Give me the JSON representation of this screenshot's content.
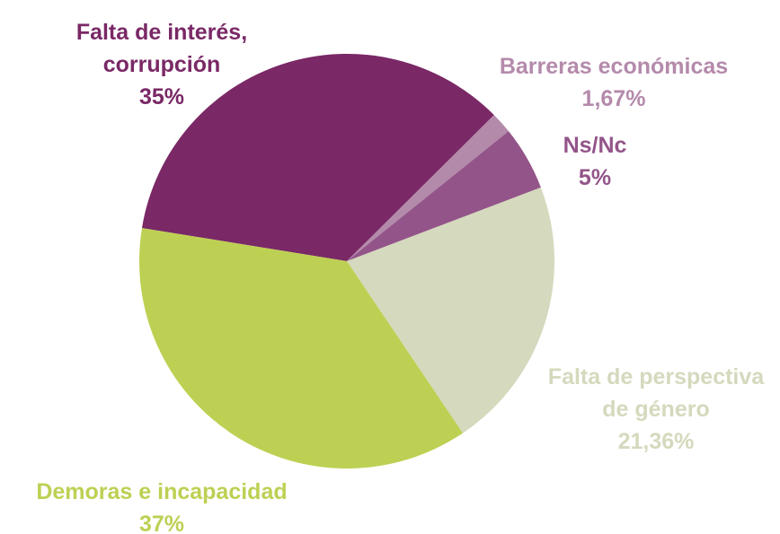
{
  "chart_data": {
    "type": "pie",
    "categories": [
      "Falta de interés, corrupción",
      "Barreras económicas",
      "Ns/Nc",
      "Falta de perspectiva de género",
      "Demoras e incapacidad"
    ],
    "values": [
      35,
      1.67,
      5,
      21.36,
      37
    ],
    "value_labels": [
      "35%",
      "1,67%",
      "5%",
      "21,36%",
      "37%"
    ],
    "colors": [
      "#7a2866",
      "#b48aab",
      "#935589",
      "#d5d9bd",
      "#bed053"
    ]
  }
}
